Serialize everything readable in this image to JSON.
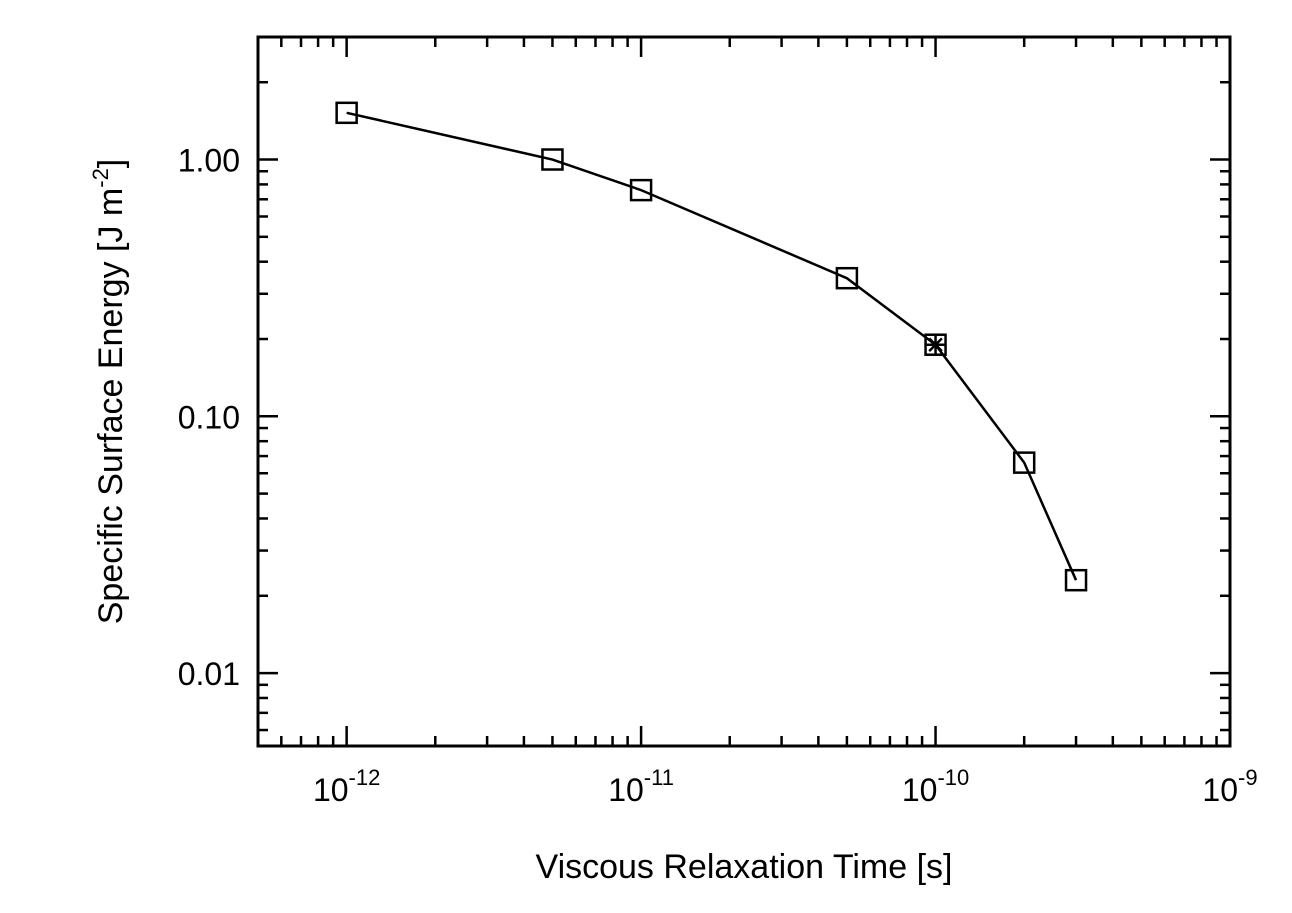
{
  "chart_data": {
    "type": "scatter",
    "title": "",
    "xlabel": "Viscous Relaxation Time [s]",
    "ylabel": {
      "main": "Specific Surface Energy [J m",
      "superscript": "-2",
      "close": "]"
    },
    "x_scale": "log",
    "y_scale": "log",
    "xlim": [
      5e-13,
      1e-09
    ],
    "ylim": [
      0.0052,
      3.0
    ],
    "x_ticks": [
      {
        "value": 1e-12,
        "base": "10",
        "exp": "-12"
      },
      {
        "value": 1e-11,
        "base": "10",
        "exp": "-11"
      },
      {
        "value": 1e-10,
        "base": "10",
        "exp": "-10"
      },
      {
        "value": 1e-09,
        "base": "10",
        "exp": "-9"
      }
    ],
    "y_ticks": [
      {
        "value": 1.0,
        "label": "1.00"
      },
      {
        "value": 0.1,
        "label": "0.10"
      },
      {
        "value": 0.01,
        "label": "0.01"
      }
    ],
    "grid": false,
    "legend": "none",
    "series": [
      {
        "marker": "square",
        "line": "solid",
        "x": [
          1e-12,
          5e-12,
          1e-11,
          5e-11,
          1e-10,
          2e-10,
          3e-10
        ],
        "y": [
          1.52,
          1.0,
          0.76,
          0.345,
          0.19,
          0.066,
          0.023
        ]
      }
    ],
    "annotations": [
      {
        "marker": "asterisk",
        "x": 1e-10,
        "y": 0.19
      }
    ],
    "colors": {
      "line": "#000000",
      "background": "#ffffff"
    }
  }
}
